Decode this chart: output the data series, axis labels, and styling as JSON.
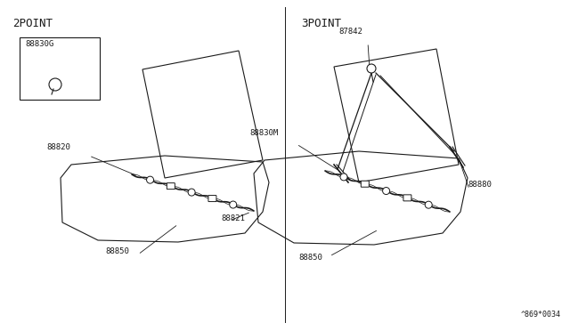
{
  "background_color": "#ffffff",
  "line_color": "#1a1a1a",
  "title_2point": "2POINT",
  "title_3point": "3POINT",
  "watermark": "^869*0034",
  "font_size_title": 9,
  "font_size_label": 6.5,
  "font_size_watermark": 6
}
